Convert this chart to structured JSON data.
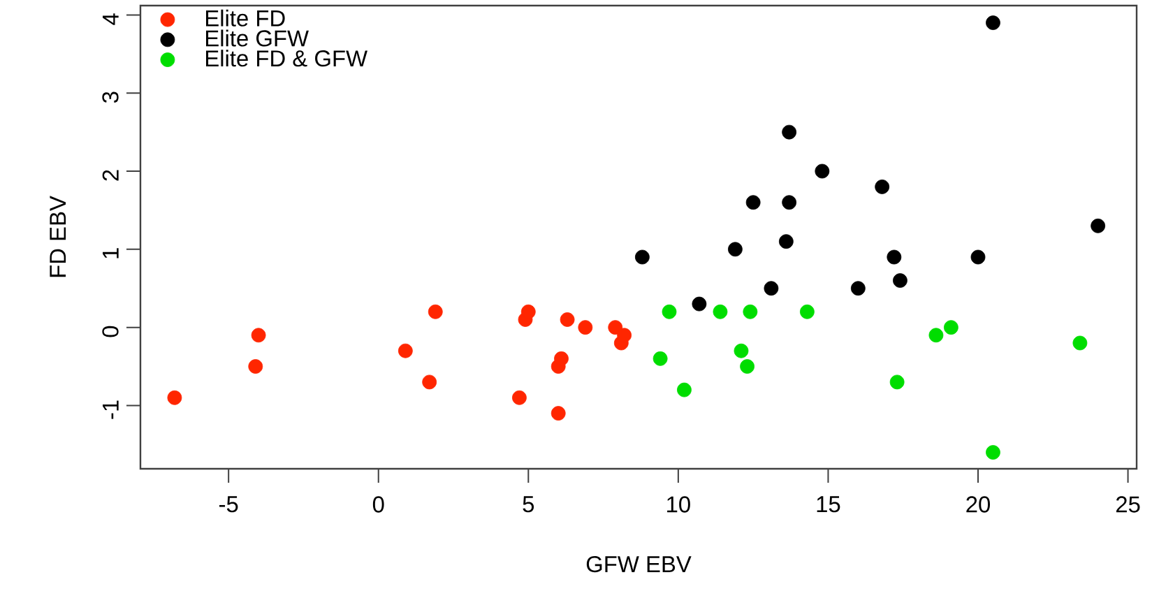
{
  "chart_data": {
    "type": "scatter",
    "xlabel": "GFW EBV",
    "ylabel": "FD EBV",
    "xlim": [
      -7.94,
      25.29
    ],
    "ylim": [
      -1.81,
      4.12
    ],
    "xticks": [
      -5,
      0,
      5,
      10,
      15,
      20,
      25
    ],
    "yticks": [
      -1,
      0,
      1,
      2,
      3,
      4
    ],
    "marker": "circle",
    "legend": "top left",
    "grid": false,
    "series": [
      {
        "name": "Elite FD",
        "color": "#ff2600",
        "x": [
          -6.8,
          -4.1,
          -4.0,
          0.9,
          1.7,
          1.9,
          4.7,
          4.9,
          5.0,
          6.0,
          6.1,
          6.0,
          6.3,
          6.9,
          7.9,
          8.1,
          8.2
        ],
        "values": [
          -0.9,
          -0.5,
          -0.1,
          -0.3,
          -0.7,
          0.2,
          -0.9,
          0.1,
          0.2,
          -0.5,
          -0.4,
          -1.1,
          0.1,
          0.0,
          0.0,
          -0.2,
          -0.1
        ]
      },
      {
        "name": "Elite GFW",
        "color": "#000000",
        "x": [
          8.8,
          10.7,
          11.9,
          12.5,
          13.1,
          13.6,
          13.7,
          13.7,
          14.8,
          16.0,
          16.8,
          17.2,
          17.4,
          20.0,
          20.5,
          24.0
        ],
        "values": [
          0.9,
          0.3,
          1.0,
          1.6,
          0.5,
          1.1,
          1.6,
          2.5,
          2.0,
          0.5,
          1.8,
          0.9,
          0.6,
          0.9,
          3.9,
          1.3
        ]
      },
      {
        "name": "Elite FD & GFW",
        "color": "#00dd00",
        "x": [
          9.4,
          9.7,
          10.2,
          11.4,
          12.1,
          12.3,
          12.4,
          14.3,
          17.3,
          18.6,
          19.1,
          20.5,
          23.4
        ],
        "values": [
          -0.4,
          0.2,
          -0.8,
          0.2,
          -0.3,
          -0.5,
          0.2,
          0.2,
          -0.7,
          -0.1,
          0.0,
          -1.6,
          -0.2
        ]
      }
    ]
  }
}
